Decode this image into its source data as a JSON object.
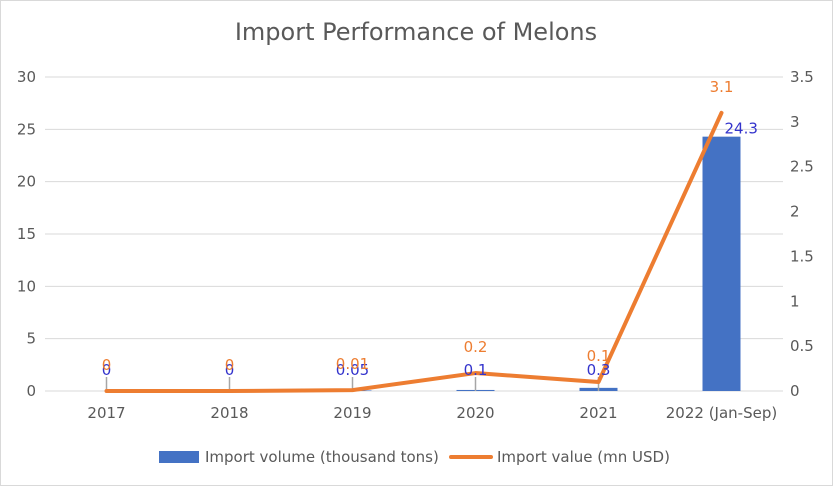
{
  "chart_data": {
    "type": "bar+line",
    "title": "Import Performance of Melons",
    "categories": [
      "2017",
      "2018",
      "2019",
      "2020",
      "2021",
      "2022 (Jan-Sep)"
    ],
    "series": [
      {
        "name": "Import volume (thousand tons)",
        "type": "bar",
        "axis": "left",
        "values": [
          0,
          0,
          0.05,
          0.1,
          0.3,
          24.3
        ],
        "labels": [
          "0",
          "0",
          "0.05",
          "0.1",
          "0.3",
          "24.3"
        ],
        "color": "#4472c4",
        "label_color": "#3333cc"
      },
      {
        "name": "Import value (mn USD)",
        "type": "line",
        "axis": "right",
        "values": [
          0,
          0,
          0.01,
          0.2,
          0.1,
          3.1
        ],
        "labels": [
          "0",
          "0",
          "0.01",
          "0.2",
          "0.1",
          "3.1"
        ],
        "color": "#ed7d31",
        "label_color": "#ed7d31"
      }
    ],
    "y_left": {
      "min": 0,
      "max": 30,
      "ticks": [
        "0",
        "5",
        "10",
        "15",
        "20",
        "25",
        "30"
      ]
    },
    "y_right": {
      "min": 0,
      "max": 3.5,
      "ticks": [
        "0",
        "0.5",
        "1",
        "1.5",
        "2",
        "2.5",
        "3",
        "3.5"
      ]
    },
    "grid": true,
    "legend_position": "bottom"
  }
}
